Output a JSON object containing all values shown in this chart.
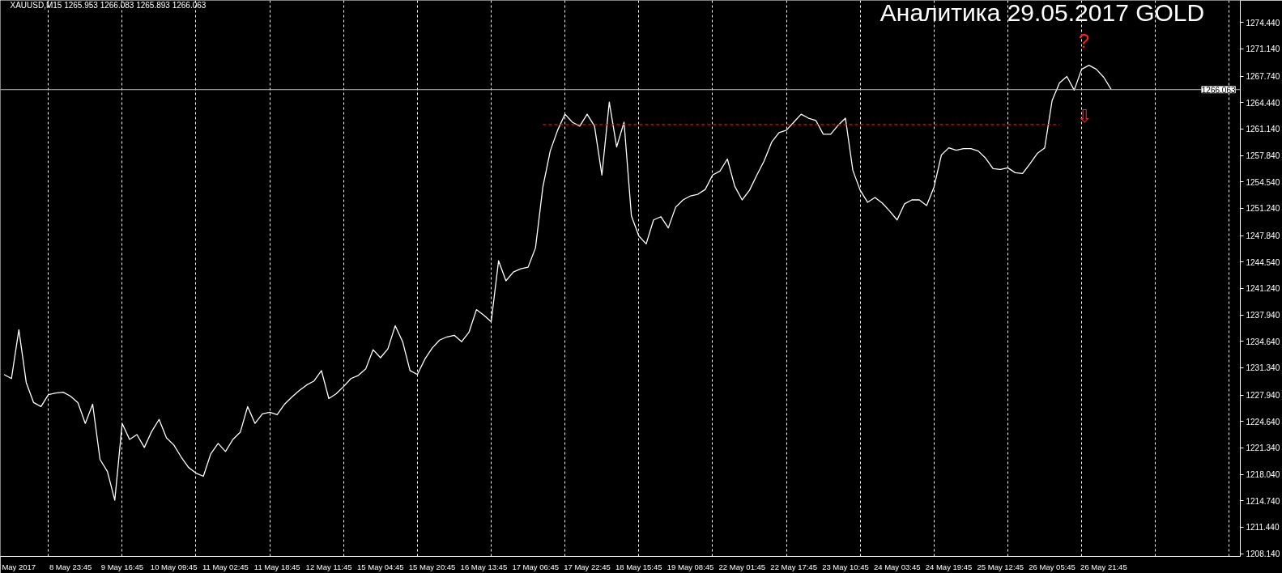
{
  "chart_data": {
    "type": "line",
    "title": "Аналитика 29.05.2017  GOLD",
    "annotations": [
      "XAUUSD,M15  1265.953 1266.083 1265.893 1266.063",
      "?",
      "⇩"
    ],
    "categories": [
      null,
      null,
      "May 2017",
      null,
      null,
      null,
      null,
      null,
      null,
      "8 May 23:45",
      null,
      null,
      null,
      null,
      null,
      null,
      "9 May 16:45",
      null,
      null,
      null,
      null,
      null,
      null,
      "10 May 09:45",
      null,
      null,
      null,
      null,
      null,
      null,
      "11 May 02:45",
      null,
      null,
      null,
      null,
      null,
      null,
      "11 May 18:45",
      null,
      null,
      null,
      null,
      null,
      null,
      "12 May 11:45",
      null,
      null,
      null,
      null,
      null,
      null,
      "15 May 04:45",
      null,
      null,
      null,
      null,
      null,
      null,
      "15 May 20:45",
      null,
      null,
      null,
      null,
      null,
      null,
      "16 May 13:45",
      null,
      null,
      null,
      null,
      null,
      null,
      "17 May 06:45",
      null,
      null,
      null,
      null,
      null,
      null,
      "17 May 22:45",
      null,
      null,
      null,
      null,
      null,
      null,
      "18 May 15:45",
      null,
      null,
      null,
      null,
      null,
      null,
      "19 May 08:45",
      null,
      null,
      null,
      null,
      null,
      null,
      "22 May 01:45",
      null,
      null,
      null,
      null,
      null,
      null,
      "22 May 17:45",
      null,
      null,
      null,
      null,
      null,
      null,
      "23 May 10:45",
      null,
      null,
      null,
      null,
      null,
      null,
      "24 May 03:45",
      null,
      null,
      null,
      null,
      null,
      null,
      "24 May 19:45",
      null,
      null,
      null,
      null,
      null,
      null,
      "25 May 12:45",
      null,
      null,
      null,
      null,
      null,
      null,
      "26 May 05:45",
      null,
      null,
      null,
      null,
      null,
      null,
      "26 May 21:45",
      null,
      null,
      null,
      null,
      null,
      null,
      null,
      null,
      null,
      null,
      null,
      null,
      null,
      null,
      null,
      null,
      null,
      null
    ],
    "ylim": [
      1207.8,
      1277.2
    ],
    "yticks": [
      {
        "value": 1274.44,
        "label": "1274.440"
      },
      {
        "value": 1271.14,
        "label": "1271.140"
      },
      {
        "value": 1267.74,
        "label": "1267.740"
      },
      {
        "value": 1264.44,
        "label": "1264.440"
      },
      {
        "value": 1261.14,
        "label": "1261.140"
      },
      {
        "value": 1257.84,
        "label": "1257.840"
      },
      {
        "value": 1254.54,
        "label": "1254.540"
      },
      {
        "value": 1251.24,
        "label": "1251.240"
      },
      {
        "value": 1247.84,
        "label": "1247.840"
      },
      {
        "value": 1244.54,
        "label": "1244.540"
      },
      {
        "value": 1241.24,
        "label": "1241.240"
      },
      {
        "value": 1237.94,
        "label": "1237.940"
      },
      {
        "value": 1234.64,
        "label": "1234.640"
      },
      {
        "value": 1231.34,
        "label": "1231.340"
      },
      {
        "value": 1227.94,
        "label": "1227.940"
      },
      {
        "value": 1224.64,
        "label": "1224.640"
      },
      {
        "value": 1221.34,
        "label": "1221.340"
      },
      {
        "value": 1218.04,
        "label": "1218.040"
      },
      {
        "value": 1214.74,
        "label": "1214.740"
      },
      {
        "value": 1211.44,
        "label": "1211.440"
      },
      {
        "value": 1208.14,
        "label": "1208.140"
      }
    ],
    "grid": "x",
    "ref_lines": [
      {
        "axis": "y",
        "value": 1266.063,
        "label": "1266.063",
        "color": "#c0c0c0"
      }
    ],
    "series": [
      {
        "color": "#ffffff",
        "line_style": "solid",
        "values": [
          1230.5,
          1230.0,
          1236.1,
          1229.5,
          1227.0,
          1226.5,
          1228.0,
          1228.2,
          1228.3,
          1227.8,
          1227.0,
          1224.4,
          1226.8,
          1219.9,
          1218.4,
          1214.8,
          1224.4,
          1222.4,
          1223.0,
          1221.4,
          1223.4,
          1224.9,
          1222.6,
          1221.7,
          1220.2,
          1218.9,
          1218.2,
          1217.8,
          1220.6,
          1221.9,
          1220.9,
          1222.4,
          1223.3,
          1226.5,
          1224.4,
          1225.6,
          1225.8,
          1225.5,
          1226.8,
          1227.7,
          1228.5,
          1229.2,
          1229.7,
          1231.0,
          1227.5,
          1228.1,
          1229.0,
          1230.0,
          1230.4,
          1231.2,
          1233.6,
          1232.6,
          1233.7,
          1236.6,
          1234.6,
          1231.0,
          1230.5,
          1232.4,
          1233.8,
          1234.8,
          1235.2,
          1235.4,
          1234.6,
          1235.8,
          1238.6,
          1237.9,
          1237.1,
          1244.7,
          1242.2,
          1243.3,
          1243.7,
          1243.9,
          1246.3,
          1253.9,
          1258.4,
          1261.0,
          1263.0,
          1262.0,
          1261.5,
          1263.0,
          1261.5,
          1255.4,
          1264.5,
          1258.9,
          1262.0,
          1250.3,
          1247.8,
          1246.8,
          1249.8,
          1250.2,
          1248.8,
          1251.4,
          1252.3,
          1252.8,
          1253.0,
          1253.6,
          1255.4,
          1255.9,
          1257.4,
          1254.0,
          1252.3,
          1253.5,
          1255.4,
          1257.2,
          1259.5,
          1260.7,
          1261.0,
          1262.0,
          1263.0,
          1262.5,
          1262.2,
          1260.5,
          1260.5,
          1261.6,
          1262.5,
          1256.0,
          1253.5,
          1252.0,
          1252.6,
          1251.9,
          1250.9,
          1249.8,
          1251.8,
          1252.3,
          1252.3,
          1251.6,
          1253.9,
          1257.9,
          1258.8,
          1258.5,
          1258.7,
          1258.7,
          1258.4,
          1257.5,
          1256.2,
          1256.1,
          1256.3,
          1255.7,
          1255.6,
          1256.8,
          1258.1,
          1258.8,
          1264.7,
          1266.9,
          1267.7,
          1266.0,
          1268.6,
          1269.1,
          1268.6,
          1267.6,
          1266.1,
          null,
          null,
          null,
          null,
          null,
          null,
          null,
          null,
          null,
          null,
          null,
          null,
          null,
          null,
          null,
          null,
          null
        ]
      },
      {
        "color": "#ff0000",
        "line_style": "dashed",
        "values": [
          null,
          null,
          null,
          null,
          null,
          null,
          null,
          null,
          null,
          null,
          null,
          null,
          null,
          null,
          null,
          null,
          null,
          null,
          null,
          null,
          null,
          null,
          null,
          null,
          null,
          null,
          null,
          null,
          null,
          null,
          null,
          null,
          null,
          null,
          null,
          null,
          null,
          null,
          null,
          null,
          null,
          null,
          null,
          null,
          null,
          null,
          null,
          null,
          null,
          null,
          null,
          null,
          null,
          null,
          null,
          null,
          null,
          null,
          null,
          null,
          null,
          null,
          null,
          null,
          null,
          null,
          null,
          null,
          null,
          null,
          null,
          null,
          null,
          1261.7,
          1261.7,
          1261.7,
          1261.7,
          1261.7,
          1261.7,
          1261.7,
          1261.7,
          1261.7,
          1261.7,
          1261.7,
          1261.7,
          1261.7,
          1261.7,
          1261.7,
          1261.7,
          1261.7,
          1261.7,
          1261.7,
          1261.7,
          1261.7,
          1261.7,
          1261.7,
          1261.7,
          1261.7,
          1261.7,
          1261.7,
          1261.7,
          1261.7,
          1261.7,
          1261.7,
          1261.7,
          1261.7,
          1261.7,
          1261.7,
          1261.7,
          1261.7,
          1261.7,
          1261.7,
          1261.7,
          1261.7,
          1261.7,
          1261.7,
          1261.7,
          1261.7,
          1261.7,
          1261.7,
          1261.7,
          1261.7,
          1261.7,
          1261.7,
          1261.7,
          1261.7,
          1261.7,
          1261.7,
          1261.7,
          1261.7,
          1261.7,
          1261.7,
          1261.7,
          1261.7,
          1261.7,
          1261.7,
          1261.7,
          1261.7,
          1261.7,
          1261.7,
          1261.7,
          1261.7,
          1261.7,
          1261.7,
          null,
          null,
          null,
          null,
          null,
          null,
          null,
          null,
          null,
          null,
          null,
          null,
          null,
          null,
          null,
          null,
          null,
          null,
          null,
          null,
          null,
          null,
          null,
          null
        ]
      }
    ]
  }
}
